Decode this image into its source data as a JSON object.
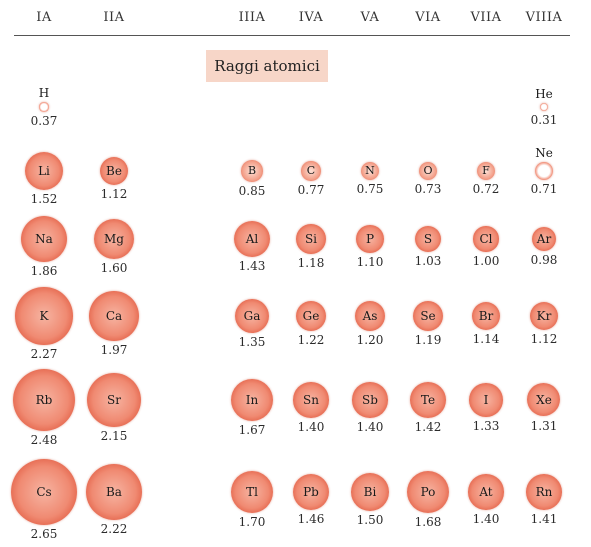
{
  "title": "Raggi atomici",
  "groups": [
    {
      "label": "IA",
      "col": 0
    },
    {
      "label": "IIA",
      "col": 1
    },
    {
      "label": "IIIA",
      "col": 2
    },
    {
      "label": "IVA",
      "col": 3
    },
    {
      "label": "VA",
      "col": 4
    },
    {
      "label": "VIA",
      "col": 5
    },
    {
      "label": "VIIA",
      "col": 6
    },
    {
      "label": "VIIIA",
      "col": 7
    }
  ],
  "colors": {
    "atom": "#e0583e",
    "title_bg": "#f7d6c8"
  },
  "elements": [
    {
      "symbol": "H",
      "radius": "0.37",
      "r": 0.37,
      "row": 0,
      "col": 0
    },
    {
      "symbol": "He",
      "radius": "0.31",
      "r": 0.31,
      "row": 0,
      "col": 7
    },
    {
      "symbol": "Li",
      "radius": "1.52",
      "r": 1.52,
      "row": 1,
      "col": 0
    },
    {
      "symbol": "Be",
      "radius": "1.12",
      "r": 1.12,
      "row": 1,
      "col": 1
    },
    {
      "symbol": "B",
      "radius": "0.85",
      "r": 0.85,
      "row": 1,
      "col": 2
    },
    {
      "symbol": "C",
      "radius": "0.77",
      "r": 0.77,
      "row": 1,
      "col": 3
    },
    {
      "symbol": "N",
      "radius": "0.75",
      "r": 0.75,
      "row": 1,
      "col": 4
    },
    {
      "symbol": "O",
      "radius": "0.73",
      "r": 0.73,
      "row": 1,
      "col": 5
    },
    {
      "symbol": "F",
      "radius": "0.72",
      "r": 0.72,
      "row": 1,
      "col": 6
    },
    {
      "symbol": "Ne",
      "radius": "0.71",
      "r": 0.71,
      "row": 1,
      "col": 7
    },
    {
      "symbol": "Na",
      "radius": "1.86",
      "r": 1.86,
      "row": 2,
      "col": 0
    },
    {
      "symbol": "Mg",
      "radius": "1.60",
      "r": 1.6,
      "row": 2,
      "col": 1
    },
    {
      "symbol": "Al",
      "radius": "1.43",
      "r": 1.43,
      "row": 2,
      "col": 2
    },
    {
      "symbol": "Si",
      "radius": "1.18",
      "r": 1.18,
      "row": 2,
      "col": 3
    },
    {
      "symbol": "P",
      "radius": "1.10",
      "r": 1.1,
      "row": 2,
      "col": 4
    },
    {
      "symbol": "S",
      "radius": "1.03",
      "r": 1.03,
      "row": 2,
      "col": 5
    },
    {
      "symbol": "Cl",
      "radius": "1.00",
      "r": 1.0,
      "row": 2,
      "col": 6
    },
    {
      "symbol": "Ar",
      "radius": "0.98",
      "r": 0.98,
      "row": 2,
      "col": 7
    },
    {
      "symbol": "K",
      "radius": "2.27",
      "r": 2.27,
      "row": 3,
      "col": 0
    },
    {
      "symbol": "Ca",
      "radius": "1.97",
      "r": 1.97,
      "row": 3,
      "col": 1
    },
    {
      "symbol": "Ga",
      "radius": "1.35",
      "r": 1.35,
      "row": 3,
      "col": 2
    },
    {
      "symbol": "Ge",
      "radius": "1.22",
      "r": 1.22,
      "row": 3,
      "col": 3
    },
    {
      "symbol": "As",
      "radius": "1.20",
      "r": 1.2,
      "row": 3,
      "col": 4
    },
    {
      "symbol": "Se",
      "radius": "1.19",
      "r": 1.19,
      "row": 3,
      "col": 5
    },
    {
      "symbol": "Br",
      "radius": "1.14",
      "r": 1.14,
      "row": 3,
      "col": 6
    },
    {
      "symbol": "Kr",
      "radius": "1.12",
      "r": 1.12,
      "row": 3,
      "col": 7
    },
    {
      "symbol": "Rb",
      "radius": "2.48",
      "r": 2.48,
      "row": 4,
      "col": 0
    },
    {
      "symbol": "Sr",
      "radius": "2.15",
      "r": 2.15,
      "row": 4,
      "col": 1
    },
    {
      "symbol": "In",
      "radius": "1.67",
      "r": 1.67,
      "row": 4,
      "col": 2
    },
    {
      "symbol": "Sn",
      "radius": "1.40",
      "r": 1.4,
      "row": 4,
      "col": 3
    },
    {
      "symbol": "Sb",
      "radius": "1.40",
      "r": 1.4,
      "row": 4,
      "col": 4
    },
    {
      "symbol": "Te",
      "radius": "1.42",
      "r": 1.42,
      "row": 4,
      "col": 5
    },
    {
      "symbol": "I",
      "radius": "1.33",
      "r": 1.33,
      "row": 4,
      "col": 6
    },
    {
      "symbol": "Xe",
      "radius": "1.31",
      "r": 1.31,
      "row": 4,
      "col": 7
    },
    {
      "symbol": "Cs",
      "radius": "2.65",
      "r": 2.65,
      "row": 5,
      "col": 0
    },
    {
      "symbol": "Ba",
      "radius": "2.22",
      "r": 2.22,
      "row": 5,
      "col": 1
    },
    {
      "symbol": "Tl",
      "radius": "1.70",
      "r": 1.7,
      "row": 5,
      "col": 2
    },
    {
      "symbol": "Pb",
      "radius": "1.46",
      "r": 1.46,
      "row": 5,
      "col": 3
    },
    {
      "symbol": "Bi",
      "radius": "1.50",
      "r": 1.5,
      "row": 5,
      "col": 4
    },
    {
      "symbol": "Po",
      "radius": "1.68",
      "r": 1.68,
      "row": 5,
      "col": 5
    },
    {
      "symbol": "At",
      "radius": "1.40",
      "r": 1.4,
      "row": 5,
      "col": 6
    },
    {
      "symbol": "Rn",
      "radius": "1.41",
      "r": 1.41,
      "row": 5,
      "col": 7
    }
  ]
}
